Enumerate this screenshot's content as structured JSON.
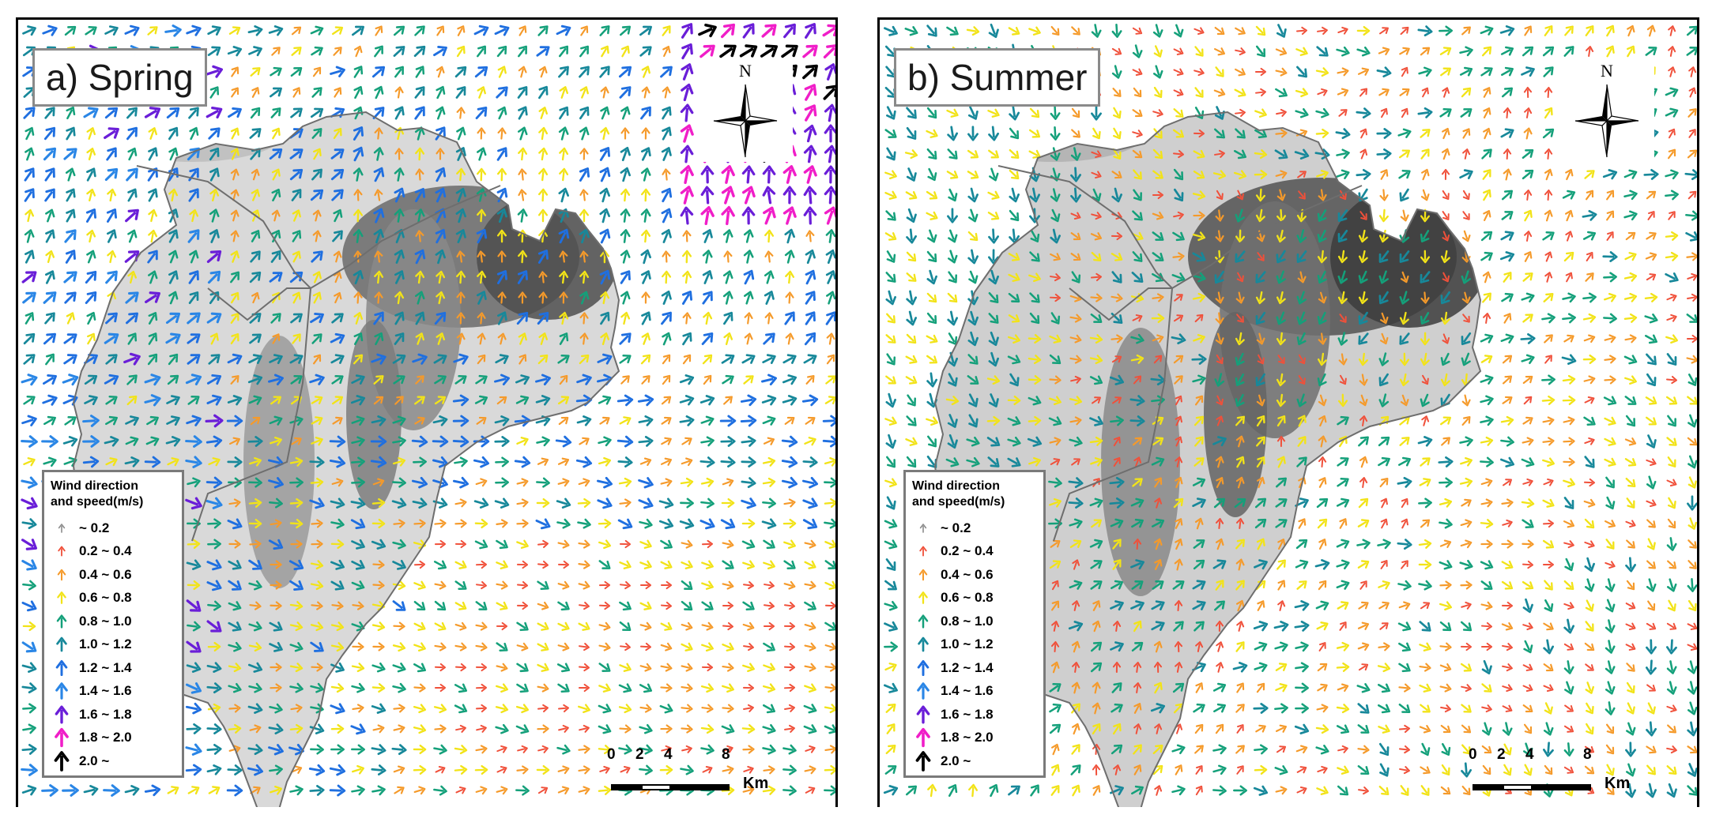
{
  "panels": [
    {
      "id": "a",
      "title": "a) Spring",
      "season": "spring"
    },
    {
      "id": "b",
      "title": "b) Summer",
      "season": "summer"
    }
  ],
  "compass": {
    "north_label": "N"
  },
  "legend": {
    "title_line1": "Wind direction",
    "title_line2": "and speed(m/s)",
    "classes": [
      {
        "label": "~ 0.2",
        "color": "#8c8c8c"
      },
      {
        "label": "0.2 ~ 0.4",
        "color": "#f0503a"
      },
      {
        "label": "0.4 ~ 0.6",
        "color": "#f59a2a"
      },
      {
        "label": "0.6 ~ 0.8",
        "color": "#f2e318"
      },
      {
        "label": "0.8 ~ 1.0",
        "color": "#14a07a"
      },
      {
        "label": "1.0 ~ 1.2",
        "color": "#17889a"
      },
      {
        "label": "1.2 ~ 1.4",
        "color": "#1f6fe0"
      },
      {
        "label": "1.4 ~ 1.6",
        "color": "#2a86e6"
      },
      {
        "label": "1.6 ~ 1.8",
        "color": "#6a1ed8"
      },
      {
        "label": "1.8 ~ 2.0",
        "color": "#f01ec8"
      },
      {
        "label": "2.0 ~",
        "color": "#000000"
      }
    ]
  },
  "scalebar": {
    "ticks": [
      "0",
      "2",
      "4",
      "8"
    ],
    "unit": "Km"
  },
  "colors": {
    "basin_outline": "#6e6e6e",
    "panel_frame": "#000000",
    "title_border": "#8a8a8a"
  }
}
